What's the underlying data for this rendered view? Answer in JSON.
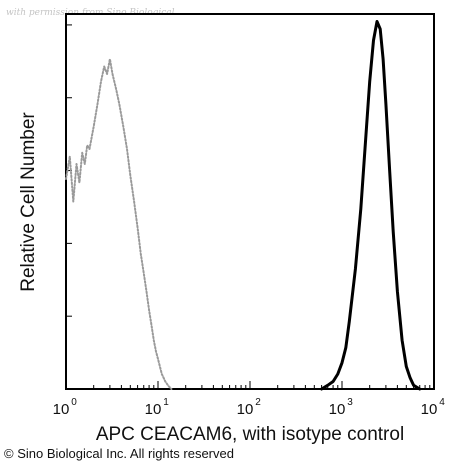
{
  "watermark": "with permission from Sino Biological",
  "copyright": "© Sino Biological Inc. All rights reserved",
  "chart_data": {
    "type": "line",
    "title": "",
    "xlabel": "APC CEACAM6, with isotype control",
    "ylabel": "Relative Cell Number",
    "x_scale": "log",
    "xlim": [
      1,
      10000
    ],
    "ylim": [
      0,
      100
    ],
    "x_ticks": [
      {
        "value": 1,
        "base": "10",
        "exp": "0"
      },
      {
        "value": 10,
        "base": "10",
        "exp": "1"
      },
      {
        "value": 100,
        "base": "10",
        "exp": "2"
      },
      {
        "value": 1000,
        "base": "10",
        "exp": "3"
      },
      {
        "value": 10000,
        "base": "10",
        "exp": "4"
      }
    ],
    "grid": false,
    "series": [
      {
        "color": "#9a9a9a",
        "style": "dotted",
        "x": [
          1.0,
          1.1,
          1.2,
          1.3,
          1.4,
          1.5,
          1.6,
          1.7,
          1.8,
          2.0,
          2.2,
          2.4,
          2.6,
          2.8,
          3.0,
          3.2,
          3.5,
          3.8,
          4.2,
          4.6,
          5.0,
          5.5,
          6.0,
          6.5,
          7.0,
          7.5,
          8.0,
          8.5,
          9.0,
          9.5,
          10.0,
          10.5,
          11.0,
          11.5,
          12.0,
          13.0,
          14.0
        ],
        "y": [
          56,
          62,
          50,
          60,
          55,
          63,
          60,
          65,
          64,
          70,
          76,
          82,
          86,
          84,
          88,
          84,
          80,
          76,
          70,
          64,
          57,
          50,
          43,
          36,
          31,
          26,
          21,
          17,
          13,
          10,
          8,
          6,
          4,
          3,
          2,
          0.8,
          0
        ]
      },
      {
        "color": "#000000",
        "style": "solid",
        "x": [
          600,
          700,
          800,
          900,
          1000,
          1100,
          1200,
          1400,
          1600,
          1800,
          2000,
          2200,
          2400,
          2600,
          2800,
          3000,
          3300,
          3600,
          4000,
          4500,
          5000,
          5500,
          6000,
          7000
        ],
        "y": [
          0,
          1,
          2,
          4,
          7,
          11,
          18,
          32,
          48,
          66,
          82,
          93,
          98,
          96,
          88,
          76,
          58,
          42,
          26,
          13,
          6,
          3,
          1,
          0
        ]
      }
    ]
  }
}
